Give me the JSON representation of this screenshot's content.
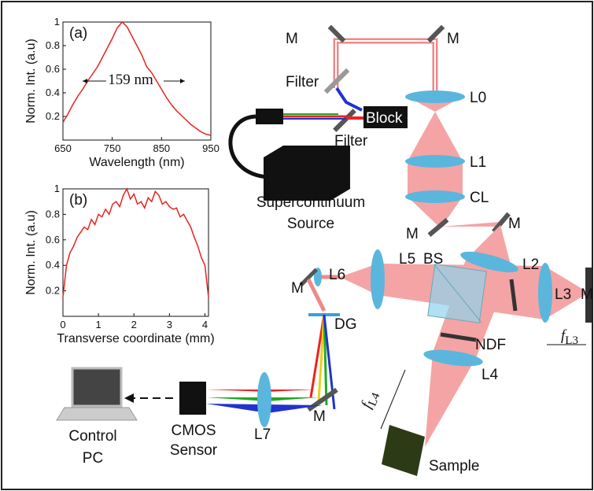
{
  "chart_data": [
    {
      "type": "line",
      "label": "(a)",
      "annotation": "159 nm",
      "y_label": "Norm. Int. (a.u)",
      "x_label": "Wavelength (nm)",
      "color": "#e8231f",
      "x": [
        650,
        660,
        670,
        680,
        690,
        700,
        710,
        720,
        730,
        740,
        750,
        760,
        770,
        780,
        790,
        800,
        810,
        820,
        830,
        840,
        850,
        860,
        870,
        880,
        890,
        900,
        910,
        920,
        930,
        940,
        950
      ],
      "values": [
        0.15,
        0.22,
        0.3,
        0.37,
        0.43,
        0.5,
        0.56,
        0.62,
        0.7,
        0.78,
        0.86,
        0.95,
        1.0,
        0.96,
        0.88,
        0.8,
        0.72,
        0.62,
        0.57,
        0.5,
        0.43,
        0.36,
        0.3,
        0.25,
        0.21,
        0.17,
        0.13,
        0.1,
        0.07,
        0.05,
        0.04
      ],
      "xlim": [
        650,
        950
      ],
      "ylim": [
        0,
        1
      ],
      "xticks": [
        650,
        750,
        850,
        950
      ],
      "yticks": [
        0.2,
        0.4,
        0.6,
        0.8,
        1
      ]
    },
    {
      "type": "line",
      "label": "(b)",
      "y_label": "Norm. Int. (a.u)",
      "x_label": "Transverse coordinate (mm)",
      "color": "#e8231f",
      "x": [
        0,
        0.1,
        0.2,
        0.3,
        0.4,
        0.5,
        0.6,
        0.7,
        0.8,
        0.9,
        1.0,
        1.1,
        1.2,
        1.3,
        1.4,
        1.5,
        1.6,
        1.7,
        1.8,
        1.9,
        2.0,
        2.1,
        2.2,
        2.3,
        2.4,
        2.5,
        2.6,
        2.7,
        2.8,
        2.9,
        3.0,
        3.1,
        3.2,
        3.3,
        3.4,
        3.5,
        3.6,
        3.7,
        3.8,
        3.9,
        4.0,
        4.1
      ],
      "values": [
        0.15,
        0.4,
        0.5,
        0.55,
        0.62,
        0.66,
        0.7,
        0.68,
        0.76,
        0.72,
        0.8,
        0.78,
        0.84,
        0.8,
        0.88,
        0.9,
        0.86,
        0.95,
        1.0,
        0.92,
        0.96,
        0.88,
        0.9,
        0.85,
        0.93,
        0.9,
        0.98,
        0.95,
        0.88,
        0.9,
        0.86,
        0.84,
        0.85,
        0.78,
        0.8,
        0.75,
        0.7,
        0.62,
        0.55,
        0.46,
        0.4,
        0.15
      ],
      "xlim": [
        0,
        4.1
      ],
      "ylim": [
        0,
        1
      ],
      "xticks": [
        0,
        1,
        2,
        3,
        4
      ],
      "yticks": [
        0.2,
        0.4,
        0.6,
        0.8,
        1
      ]
    }
  ],
  "diagram": {
    "mirror": "M",
    "filter": "Filter",
    "block": "Block",
    "l0": "L0",
    "l1": "L1",
    "cl": "CL",
    "source": [
      "Supercontinuum",
      "Source"
    ],
    "l2": "L2",
    "l3": "L3",
    "l4": "L4",
    "l5": "L5",
    "l6": "L6",
    "l7": "L7",
    "bs": "BS",
    "ndf": "NDF",
    "dg": "DG",
    "sample": "Sample",
    "sensor": [
      "CMOS",
      "Sensor"
    ],
    "pc": [
      "Control",
      "PC"
    ],
    "f_l3": {
      "symbol": "f",
      "subscript": "L3"
    },
    "f_l4": {
      "symbol": "f",
      "subscript": "L4"
    }
  }
}
